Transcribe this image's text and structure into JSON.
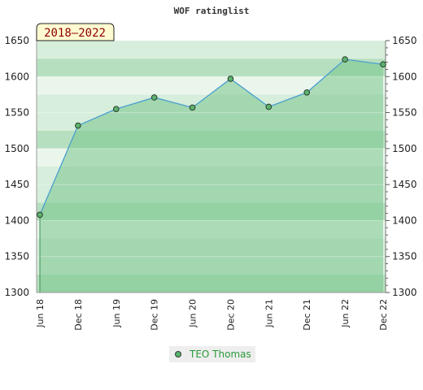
{
  "colors": {
    "band_light": "#eaf6ec",
    "band_mid": "#d6eedb",
    "band_dark": "#b6dfbf",
    "area_fill": "#79c48d",
    "line": "#4a9fd0",
    "marker_fill": "#5bb36e",
    "marker_stroke": "#2d3b2d",
    "badge_bg": "#fffbd0",
    "badge_text": "#8b0000",
    "legend_bg": "#eeeeee",
    "legend_text": "#2a9a3a"
  },
  "chart_data": {
    "type": "area",
    "title": "WOF ratinglist",
    "period_label": "2018–2022",
    "xlabel": "",
    "ylabel": "",
    "ylim": [
      1300,
      1650
    ],
    "yticks": [
      1300,
      1350,
      1400,
      1450,
      1500,
      1550,
      1600,
      1650
    ],
    "x": [
      "Jun 18",
      "Dec 18",
      "Jun 19",
      "Dec 19",
      "Jun 20",
      "Dec 20",
      "Jun 21",
      "Dec 21",
      "Jun 22",
      "Dec 22"
    ],
    "series": [
      {
        "name": "TEO Thomas",
        "values": [
          1408,
          1532,
          1555,
          1571,
          1557,
          1597,
          1558,
          1578,
          1624,
          1617
        ]
      }
    ],
    "legend_position": "bottom-center",
    "grid": true
  }
}
